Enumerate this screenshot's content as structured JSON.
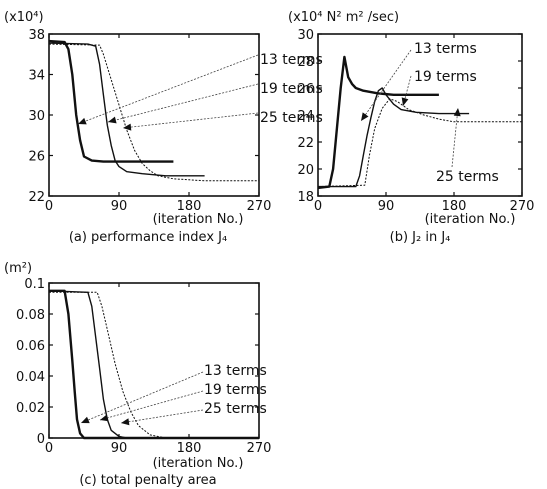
{
  "chart_data": [
    {
      "type": "line",
      "unit": "(x10⁴)",
      "xlabel": "(iteration No.)",
      "caption": "(a) performance index J₄",
      "xlim": [
        0,
        270
      ],
      "ylim": [
        22,
        38
      ],
      "xticks": [
        "0",
        "90",
        "180",
        "270"
      ],
      "yticks": [
        "22",
        "26",
        "30",
        "34",
        "38"
      ],
      "series": [
        {
          "name": "13 terms",
          "x": [
            0,
            20,
            25,
            30,
            35,
            40,
            45,
            55,
            70,
            100,
            130,
            160
          ],
          "y": [
            37.3,
            37.2,
            36.5,
            34,
            30,
            27.5,
            25.9,
            25.5,
            25.4,
            25.4,
            25.4,
            25.4
          ]
        },
        {
          "name": "19 terms",
          "x": [
            0,
            50,
            60,
            65,
            70,
            75,
            80,
            85,
            90,
            100,
            120,
            150,
            200
          ],
          "y": [
            37.1,
            37.0,
            36.8,
            35,
            32,
            29,
            27,
            25.5,
            24.9,
            24.4,
            24.2,
            24.0,
            24.0
          ]
        },
        {
          "name": "25 terms",
          "x": [
            0,
            65,
            70,
            80,
            90,
            100,
            110,
            120,
            130,
            140,
            160,
            180,
            200,
            270
          ],
          "y": [
            37.0,
            36.9,
            36.0,
            33.5,
            31,
            28.5,
            26.5,
            25.2,
            24.5,
            24.0,
            23.7,
            23.6,
            23.5,
            23.5
          ]
        }
      ],
      "labels": [
        "13 terms",
        "19 terms",
        "25 terms"
      ]
    },
    {
      "type": "line",
      "unit": "(x10⁴ N² m² /sec)",
      "xlabel": "(iteration No.)",
      "caption": "(b) J₂  in  J₄",
      "xlim": [
        0,
        270
      ],
      "ylim": [
        18,
        30
      ],
      "xticks": [
        "0",
        "90",
        "180",
        "270"
      ],
      "yticks": [
        "18",
        "20",
        "22",
        "24",
        "26",
        "28",
        "30"
      ],
      "series": [
        {
          "name": "13 terms",
          "x": [
            0,
            15,
            20,
            25,
            30,
            35,
            40,
            45,
            50,
            60,
            80,
            100,
            130,
            160
          ],
          "y": [
            18.6,
            18.7,
            20,
            23,
            26,
            28.3,
            26.8,
            26.3,
            26.0,
            25.8,
            25.6,
            25.5,
            25.5,
            25.5
          ]
        },
        {
          "name": "19 terms",
          "x": [
            0,
            50,
            55,
            60,
            65,
            70,
            75,
            80,
            85,
            90,
            100,
            110,
            130,
            160,
            200
          ],
          "y": [
            18.7,
            18.7,
            19.5,
            21,
            22.5,
            23.8,
            25.0,
            25.8,
            26.0,
            25.5,
            24.8,
            24.4,
            24.2,
            24.1,
            24.1
          ]
        },
        {
          "name": "25 terms",
          "x": [
            0,
            62,
            68,
            75,
            85,
            95,
            105,
            120,
            140,
            160,
            180,
            200,
            270
          ],
          "y": [
            18.7,
            18.8,
            21,
            23,
            24.5,
            25.2,
            25.0,
            24.4,
            24.0,
            23.7,
            23.5,
            23.5,
            23.5
          ]
        }
      ],
      "labels": [
        "13 terms",
        "19 terms",
        "25 terms"
      ]
    },
    {
      "type": "line",
      "unit": "(m²)",
      "xlabel": "(iteration No.)",
      "caption": "(c) total penalty area",
      "xlim": [
        0,
        270
      ],
      "ylim": [
        0,
        0.1
      ],
      "xticks": [
        "0",
        "90",
        "180",
        "270"
      ],
      "yticks": [
        "0",
        "0.02",
        "0.04",
        "0.06",
        "0.08",
        "0.1"
      ],
      "series": [
        {
          "name": "13 terms",
          "x": [
            0,
            20,
            25,
            30,
            33,
            36,
            40,
            45,
            60,
            270
          ],
          "y": [
            0.095,
            0.095,
            0.08,
            0.05,
            0.03,
            0.012,
            0.003,
            0,
            0,
            0
          ]
        },
        {
          "name": "19 terms",
          "x": [
            0,
            50,
            55,
            60,
            65,
            70,
            75,
            80,
            90,
            100,
            270
          ],
          "y": [
            0.095,
            0.094,
            0.085,
            0.065,
            0.045,
            0.025,
            0.012,
            0.005,
            0.001,
            0,
            0
          ]
        },
        {
          "name": "25 terms",
          "x": [
            0,
            62,
            68,
            75,
            85,
            95,
            105,
            115,
            130,
            150,
            270
          ],
          "y": [
            0.094,
            0.094,
            0.085,
            0.07,
            0.048,
            0.03,
            0.017,
            0.008,
            0.002,
            0,
            0
          ]
        }
      ],
      "labels": [
        "13 terms",
        "19 terms",
        "25 terms"
      ]
    }
  ]
}
